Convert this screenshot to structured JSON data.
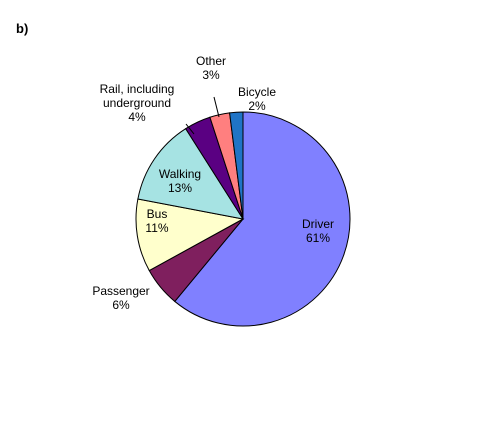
{
  "panel_label": "b)",
  "chart_data": {
    "type": "pie",
    "title": "",
    "slices": [
      {
        "name": "Driver",
        "value": 61,
        "pct_label": "61%",
        "color": "#8080FF"
      },
      {
        "name": "Passenger",
        "value": 6,
        "pct_label": "6%",
        "color": "#7F1F5E"
      },
      {
        "name": "Bus",
        "value": 11,
        "pct_label": "11%",
        "color": "#FFFFCC"
      },
      {
        "name": "Walking",
        "value": 13,
        "pct_label": "13%",
        "color": "#A6E3E3"
      },
      {
        "name": "Rail, including underground",
        "name_lines": [
          "Rail, including",
          "underground"
        ],
        "value": 4,
        "pct_label": "4%",
        "color": "#5A0082"
      },
      {
        "name": "Other",
        "value": 3,
        "pct_label": "3%",
        "color": "#FF7F7F"
      },
      {
        "name": "Bicycle",
        "value": 2,
        "pct_label": "2%",
        "color": "#1F74C6"
      }
    ]
  }
}
